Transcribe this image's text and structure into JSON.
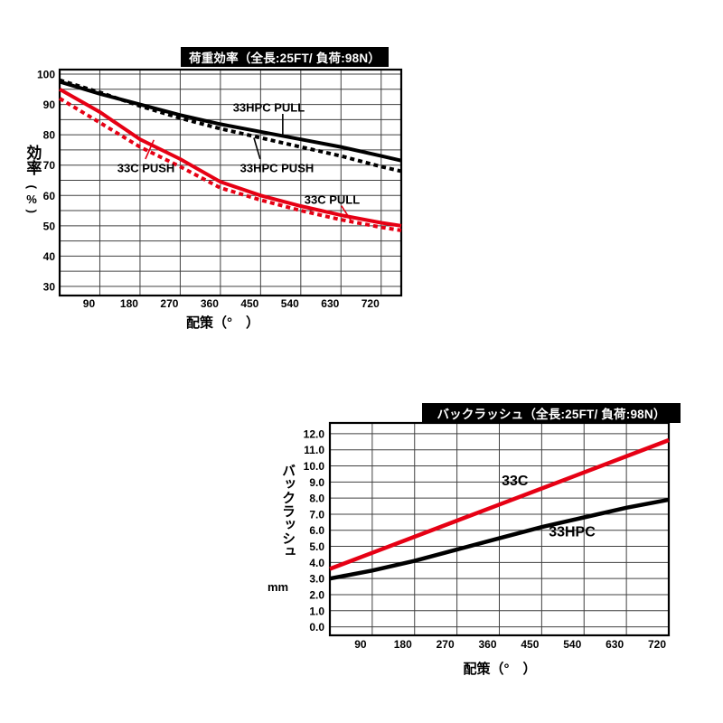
{
  "chart_data": [
    {
      "id": "load-efficiency",
      "type": "line",
      "title": "荷重効率（全長:25FT/ 負荷:98N）",
      "xlabel": "配策（°　）",
      "ylabel": "効率",
      "ylabel_unit": "(%)",
      "xlim": [
        0,
        765
      ],
      "ylim": [
        27,
        101.5
      ],
      "grid": true,
      "x_gridlines": [
        90,
        180,
        270,
        360,
        450,
        540,
        630,
        720
      ],
      "x_tick_labels": [
        "90",
        "180",
        "270",
        "360",
        "450",
        "540",
        "630",
        "720"
      ],
      "y_grid_step": 5,
      "y_tick_values": [
        30,
        40,
        50,
        60,
        70,
        80,
        90,
        100
      ],
      "y_tick_labels": [
        "30",
        "40",
        "50",
        "60",
        "70",
        "80",
        "90",
        "100"
      ],
      "x": [
        0,
        90,
        180,
        270,
        360,
        450,
        540,
        630,
        720,
        765
      ],
      "series": [
        {
          "name": "33HPC PULL",
          "color": "#000000",
          "dash": false,
          "values": [
            97.5,
            93.5,
            90,
            86.5,
            83.5,
            81,
            78.5,
            76,
            73,
            71.5
          ]
        },
        {
          "name": "33HPC PUSH",
          "color": "#000000",
          "dash": true,
          "values": [
            98,
            94,
            89.5,
            85.5,
            82,
            79,
            76,
            73,
            69.5,
            68
          ]
        },
        {
          "name": "33C PUSH",
          "color": "#e60014",
          "dash": true,
          "values": [
            92,
            84,
            76,
            69.5,
            62.5,
            58.5,
            55,
            52,
            49.5,
            48.5
          ]
        },
        {
          "name": "33C PULL",
          "color": "#e60014",
          "dash": false,
          "values": [
            95,
            87.5,
            78.5,
            72,
            64.5,
            60,
            56.5,
            53.5,
            51,
            50
          ]
        }
      ],
      "annotations": [
        {
          "text": "33HPC PULL",
          "color": "#000000",
          "x": 388,
          "y": 87.7,
          "size": 13,
          "leader": [
            [
              499.6,
              86.9
            ],
            [
              499.6,
              79.2
            ]
          ]
        },
        {
          "text": "33HPC PUSH",
          "color": "#000000",
          "x": 404,
          "y": 67.7,
          "size": 13,
          "leader": [
            [
              449,
              72
            ],
            [
              435,
              79
            ]
          ]
        },
        {
          "text": "33C PUSH",
          "color": "#e60014",
          "x": 129,
          "y": 67.7,
          "size": 13,
          "leader": [
            [
              192,
              72
            ],
            [
              211,
              78.3
            ]
          ]
        },
        {
          "text": "33C PULL",
          "color": "#e60014",
          "x": 548,
          "y": 57.2,
          "size": 13,
          "leader": [
            [
              631,
              56.6
            ],
            [
              653,
              51.6
            ]
          ]
        }
      ]
    },
    {
      "id": "backlash",
      "type": "line",
      "title": "バックラッシュ（全長:25FT/ 負荷:98N）",
      "xlabel": "配策（°　）",
      "ylabel": "バックラッシュ",
      "ylabel_unit": "mm",
      "xlim": [
        0,
        720
      ],
      "ylim": [
        -0.53,
        12.67
      ],
      "grid": true,
      "x_gridlines": [
        90,
        180,
        270,
        360,
        450,
        540,
        630,
        720
      ],
      "x_tick_labels": [
        "90",
        "180",
        "270",
        "360",
        "450",
        "540",
        "630",
        "720"
      ],
      "y_grid_step": 1,
      "y_tick_values": [
        0,
        1,
        2,
        3,
        4,
        5,
        6,
        7,
        8,
        9,
        10,
        11,
        12
      ],
      "y_tick_labels": [
        "0.0",
        "1.0",
        "2.0",
        "3.0",
        "4.0",
        "5.0",
        "6.0",
        "7.0",
        "8.0",
        "9.0",
        "10.0",
        "11.0",
        "12.0"
      ],
      "x": [
        0,
        90,
        180,
        270,
        360,
        450,
        540,
        630,
        720
      ],
      "series": [
        {
          "name": "33C",
          "color": "#e60014",
          "dash": false,
          "values": [
            3.6,
            4.6,
            5.6,
            6.6,
            7.6,
            8.6,
            9.6,
            10.6,
            11.6
          ]
        },
        {
          "name": "33HPC",
          "color": "#000000",
          "dash": false,
          "values": [
            3.0,
            3.5,
            4.1,
            4.8,
            5.5,
            6.2,
            6.8,
            7.4,
            7.9
          ]
        }
      ],
      "annotations": [
        {
          "text": "33C",
          "color": "#e60014",
          "x": 365,
          "y": 8.8,
          "size": 16
        },
        {
          "text": "33HPC",
          "color": "#000000",
          "x": 465,
          "y": 5.62,
          "size": 16
        }
      ]
    }
  ]
}
